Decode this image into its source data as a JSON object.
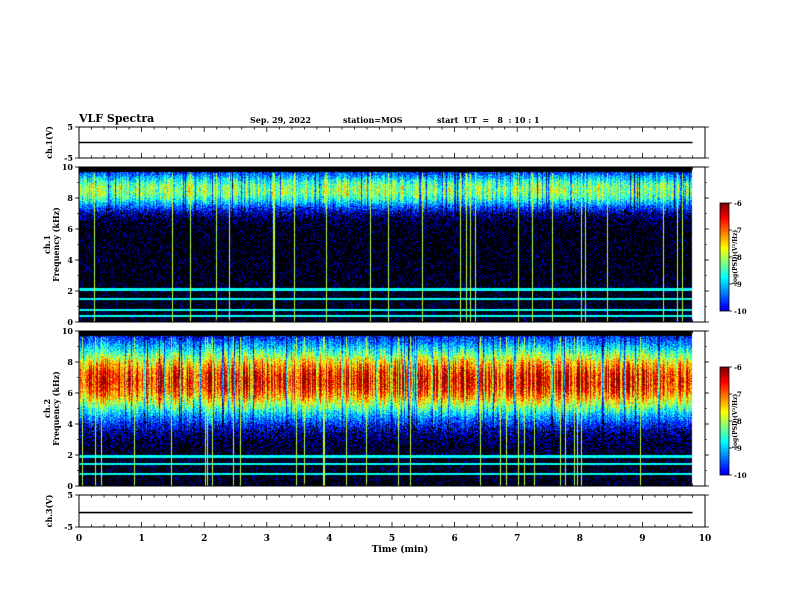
{
  "header": {
    "title": "VLF Spectra",
    "date": "Sep. 29, 2022",
    "station": "station=MOS",
    "start": "start  UT  =   8  : 10 : 1"
  },
  "chart_data": [
    {
      "type": "line",
      "panel": "ch1-waveform",
      "ylabel": "ch.1(V)",
      "ylim": [
        -5,
        5
      ],
      "yticks": [
        "5",
        "-5"
      ],
      "xlim": [
        0,
        10
      ],
      "series": [
        {
          "x": [
            0,
            9.8
          ],
          "y": [
            0,
            0
          ]
        }
      ]
    },
    {
      "type": "heatmap",
      "panel": "ch1-spectrogram",
      "ylabel": "ch.1\nFrequency (kHz)",
      "ylim": [
        0,
        10
      ],
      "yticks": [
        "0",
        "2",
        "4",
        "6",
        "8",
        "10"
      ],
      "xlim": [
        0,
        10
      ],
      "data_xmax": 9.8,
      "band_center_khz": 8.5,
      "band_halfwidth_khz": 1.2,
      "band_peak_log": -8.1,
      "lines_khz": [
        0.4,
        0.8,
        1.5,
        2.1
      ],
      "colorbar": {
        "label": "log(PSD)(V²/Hz)",
        "range": [
          -10,
          -6
        ],
        "ticks": [
          "-6",
          "-7",
          "-8",
          "-9",
          "-10"
        ]
      }
    },
    {
      "type": "heatmap",
      "panel": "ch2-spectrogram",
      "ylabel": "ch.2\nFrequency (kHz)",
      "ylim": [
        0,
        10
      ],
      "yticks": [
        "0",
        "2",
        "4",
        "6",
        "8",
        "10"
      ],
      "xlim": [
        0,
        10
      ],
      "data_xmax": 9.8,
      "band_center_khz": 6.8,
      "band_halfwidth_khz": 2.3,
      "band_peak_log": -6.6,
      "lines_khz": [
        0.8,
        1.4,
        1.9
      ],
      "colorbar": {
        "label": "log(PSD)(V²/Hz)",
        "range": [
          -10,
          -6
        ],
        "ticks": [
          "-6",
          "-7",
          "-8",
          "-9",
          "-10"
        ]
      }
    },
    {
      "type": "line",
      "panel": "ch3-waveform",
      "ylabel": "ch.3(V)",
      "ylim": [
        -5,
        5
      ],
      "yticks": [
        "5",
        "-5"
      ],
      "xlim": [
        0,
        10
      ],
      "series": [
        {
          "x": [
            0,
            9.8
          ],
          "y": [
            -0.5,
            -0.5
          ]
        }
      ]
    }
  ],
  "xaxis": {
    "label": "Time  (min)",
    "ticks": [
      "0",
      "1",
      "2",
      "3",
      "4",
      "5",
      "6",
      "7",
      "8",
      "9",
      "10"
    ]
  },
  "colors": {
    "frame": "#000000",
    "background": "#ffffff"
  }
}
